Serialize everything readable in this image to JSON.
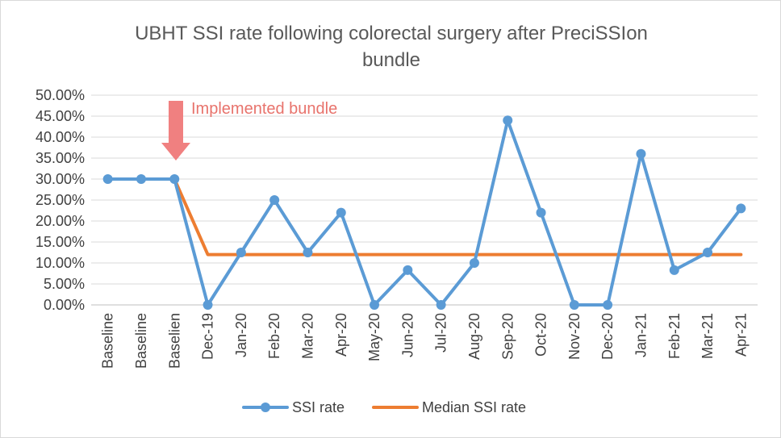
{
  "chart_data": {
    "type": "line",
    "title_lines": [
      "UBHT SSI rate following colorectal surgery after PreciSSIon",
      "bundle"
    ],
    "categories": [
      "Baseline",
      "Baseline",
      "Baselien",
      "Dec-19",
      "Jan-20",
      "Feb-20",
      "Mar-20",
      "Apr-20",
      "May-20",
      "Jun-20",
      "Jul-20",
      "Aug-20",
      "Sep-20",
      "Oct-20",
      "Nov-20",
      "Dec-20",
      "Jan-21",
      "Feb-21",
      "Mar-21",
      "Apr-21"
    ],
    "y_ticks": [
      "0.00%",
      "5.00%",
      "10.00%",
      "15.00%",
      "20.00%",
      "25.00%",
      "30.00%",
      "35.00%",
      "40.00%",
      "45.00%",
      "50.00%"
    ],
    "ylim": [
      0,
      50
    ],
    "grid": true,
    "legend_position": "bottom",
    "series": [
      {
        "name": "SSI rate",
        "color": "#5b9bd5",
        "marker": "circle",
        "values": [
          30,
          30,
          30,
          0,
          12.5,
          25,
          12.5,
          22,
          0,
          8.3,
          0,
          10,
          44,
          22,
          0,
          0,
          36,
          8.3,
          12.5,
          23
        ]
      },
      {
        "name": "Median SSI rate",
        "color": "#ed7d31",
        "marker": "none",
        "values": [
          30,
          30,
          30,
          12,
          12,
          12,
          12,
          12,
          12,
          12,
          12,
          12,
          12,
          12,
          12,
          12,
          12,
          12,
          12,
          12
        ]
      }
    ],
    "annotation": {
      "text": "Implemented bundle",
      "category_index": 2,
      "color": "#f08080",
      "icon": "down-arrow-icon"
    }
  }
}
